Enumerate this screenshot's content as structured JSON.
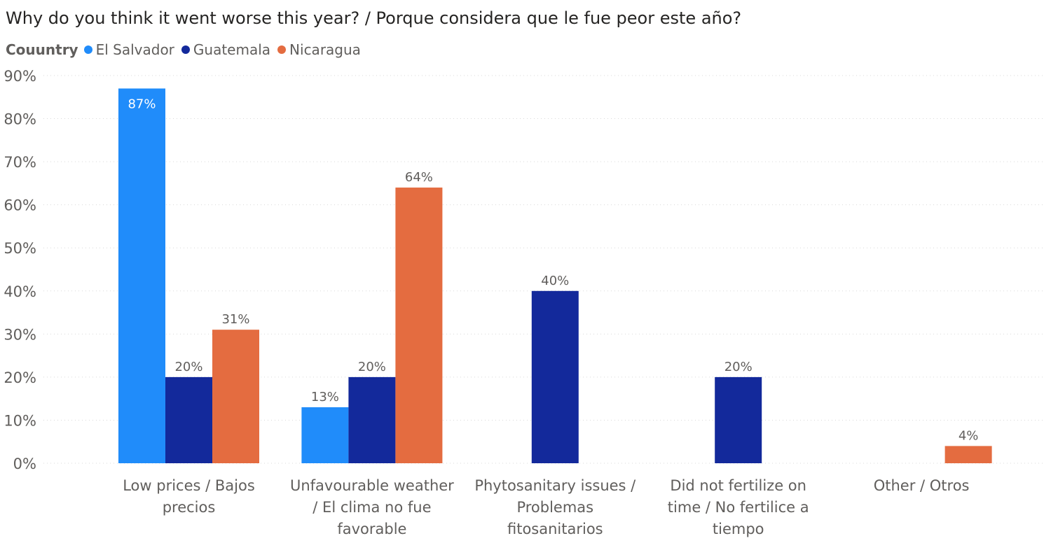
{
  "chart_data": {
    "type": "bar",
    "title": "Why do you think it went worse this year? / Porque considera que le fue peor este año?",
    "legend_title": "Couuntry",
    "legend_position": "top-left",
    "grid": true,
    "ylim": [
      0,
      90
    ],
    "yticks": [
      "0%",
      "10%",
      "20%",
      "30%",
      "40%",
      "50%",
      "60%",
      "70%",
      "80%",
      "90%"
    ],
    "categories": [
      [
        "Low prices / Bajos",
        "precios"
      ],
      [
        "Unfavourable weather",
        "/ El clima no fue",
        "favorable"
      ],
      [
        "Phytosanitary issues /",
        "Problemas",
        "fitosanitarios"
      ],
      [
        "Did not fertilize on",
        "time / No fertilice a",
        "tiempo"
      ],
      [
        "Other / Otros"
      ]
    ],
    "series": [
      {
        "name": "El Salvador",
        "color": "#208cfa",
        "values": [
          87,
          13,
          null,
          null,
          null
        ],
        "labels": [
          "87%",
          "13%",
          "",
          "",
          ""
        ]
      },
      {
        "name": "Guatemala",
        "color": "#13299b",
        "values": [
          20,
          20,
          40,
          20,
          null
        ],
        "labels": [
          "20%",
          "20%",
          "40%",
          "20%",
          ""
        ]
      },
      {
        "name": "Nicaragua",
        "color": "#e46c40",
        "values": [
          31,
          64,
          null,
          null,
          4
        ],
        "labels": [
          "31%",
          "64%",
          "",
          "",
          "4%"
        ]
      }
    ]
  }
}
